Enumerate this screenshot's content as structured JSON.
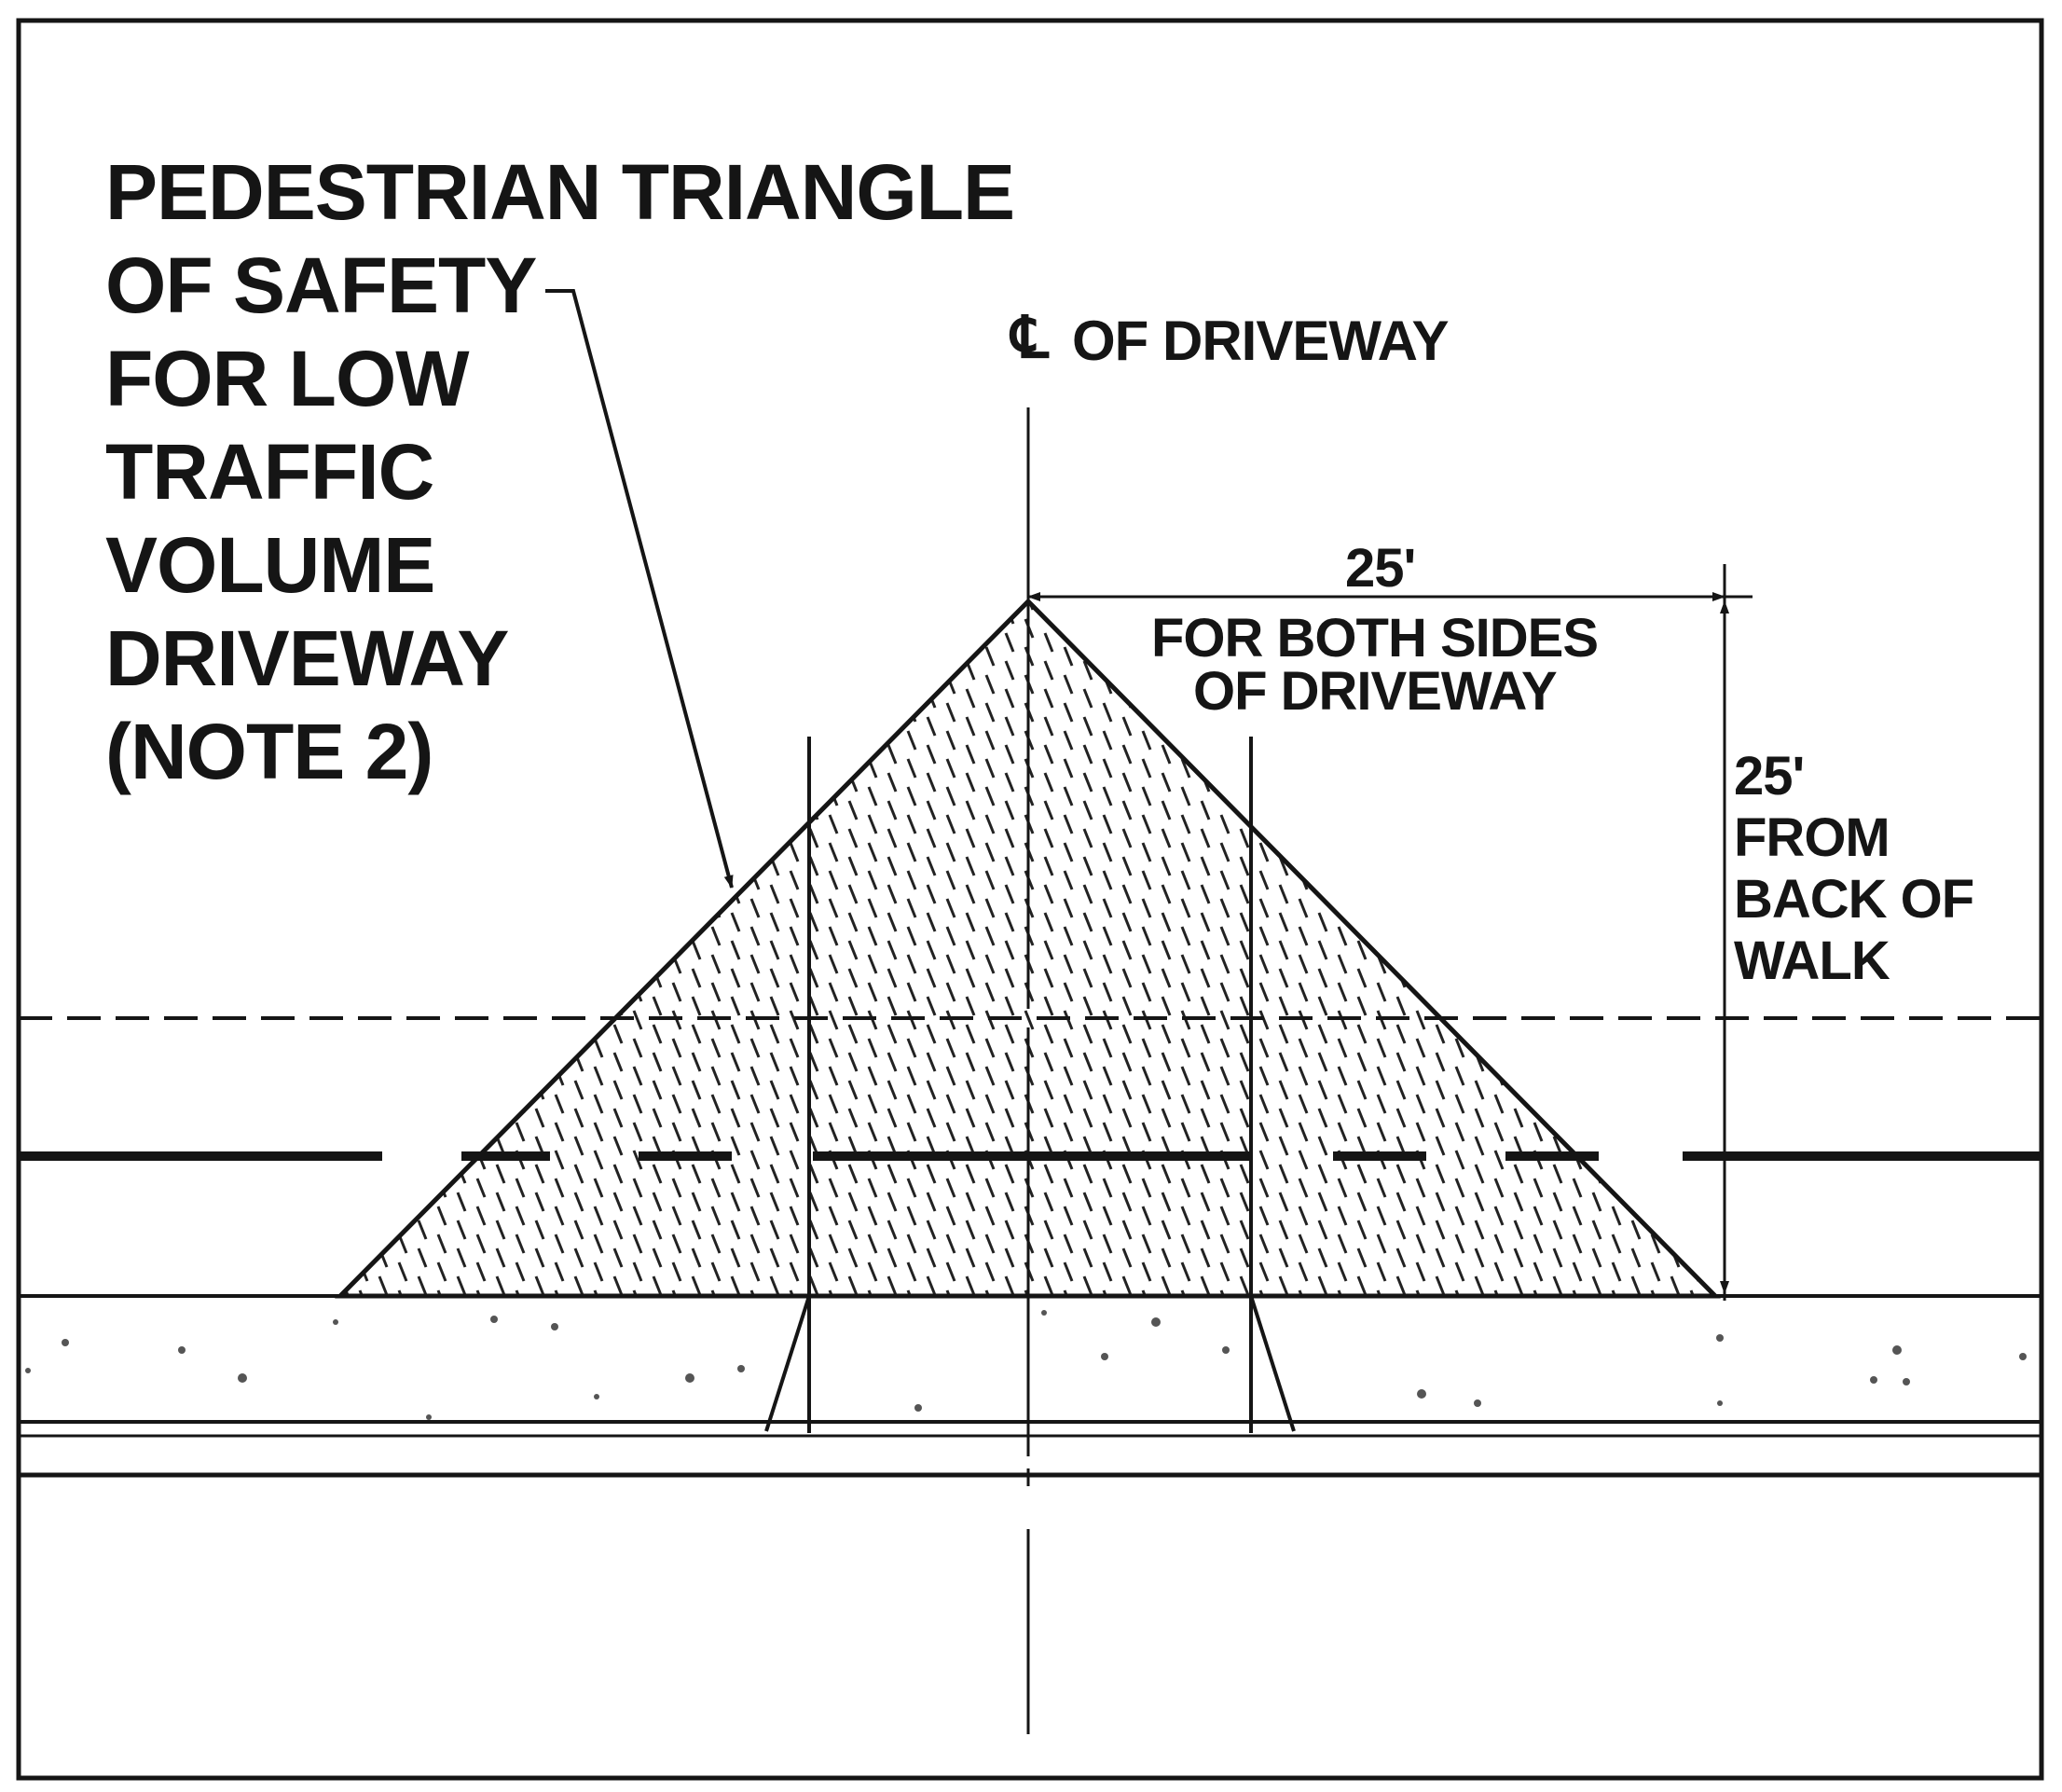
{
  "callout": {
    "lines": [
      "PEDESTRIAN TRIANGLE",
      "OF SAFETY",
      "FOR LOW",
      "TRAFFIC",
      "VOLUME",
      "DRIVEWAY",
      "(NOTE 2)"
    ]
  },
  "centerline": {
    "symbol": "℄",
    "label": "OF DRIVEWAY"
  },
  "horizontal_dimension": {
    "value": "25'",
    "note_line1": "FOR BOTH SIDES",
    "note_line2": "OF DRIVEWAY"
  },
  "vertical_dimension": {
    "value": "25'",
    "note_lines": [
      "FROM",
      "BACK OF",
      "WALK"
    ]
  },
  "colors": {
    "ink": "#151515",
    "paper": "#ffffff"
  }
}
